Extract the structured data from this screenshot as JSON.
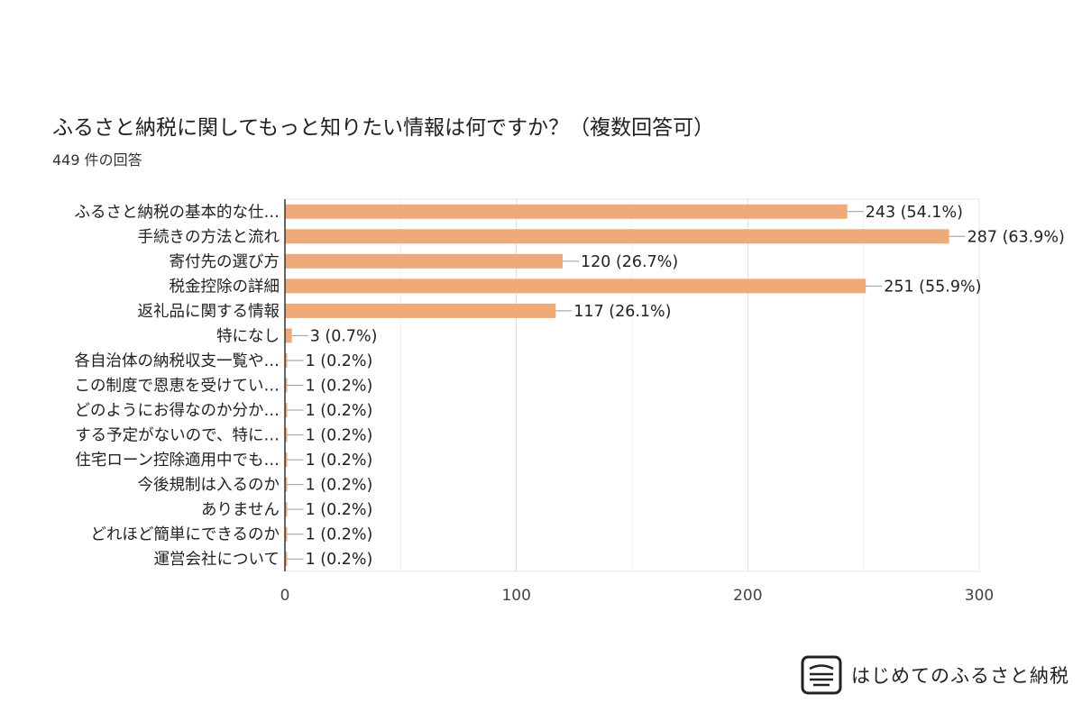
{
  "chart_data": {
    "type": "bar",
    "orientation": "horizontal",
    "title": "ふるさと納税に関してもっと知りたい情報は何ですか？（複数回答可）",
    "subtitle": "449 件の回答",
    "categories": [
      "ふるさと納税の基本的な仕…",
      "手続きの方法と流れ",
      "寄付先の選び方",
      "税金控除の詳細",
      "返礼品に関する情報",
      "特になし",
      "各自治体の納税収支一覧や…",
      "この制度で恩恵を受けてい…",
      "どのようにお得なのか分か…",
      "する予定がないので、特に…",
      "住宅ローン控除適用中でも…",
      "今後規制は入るのか",
      "ありません",
      "どれほど簡単にできるのか",
      "運営会社について"
    ],
    "values": [
      243,
      287,
      120,
      251,
      117,
      3,
      1,
      1,
      1,
      1,
      1,
      1,
      1,
      1,
      1
    ],
    "data_labels": [
      "243 (54.1%)",
      "287 (63.9%)",
      "120 (26.7%)",
      "251 (55.9%)",
      "117 (26.1%)",
      "3 (0.7%)",
      "1 (0.2%)",
      "1 (0.2%)",
      "1 (0.2%)",
      "1 (0.2%)",
      "1 (0.2%)",
      "1 (0.2%)",
      "1 (0.2%)",
      "1 (0.2%)",
      "1 (0.2%)"
    ],
    "xlim": [
      0,
      300
    ],
    "xticks": [
      0,
      100,
      200,
      300
    ],
    "xtick_labels": [
      "0",
      "100",
      "200",
      "300"
    ],
    "grid": true,
    "bar_color": "#f0aa7a"
  },
  "brand": {
    "name": "はじめてのふるさと納税",
    "icon": "brand-logo-icon"
  },
  "colors": {
    "grid": "#e6e6e6",
    "axis": "#333333",
    "label": "#222222",
    "connector": "#999999"
  }
}
